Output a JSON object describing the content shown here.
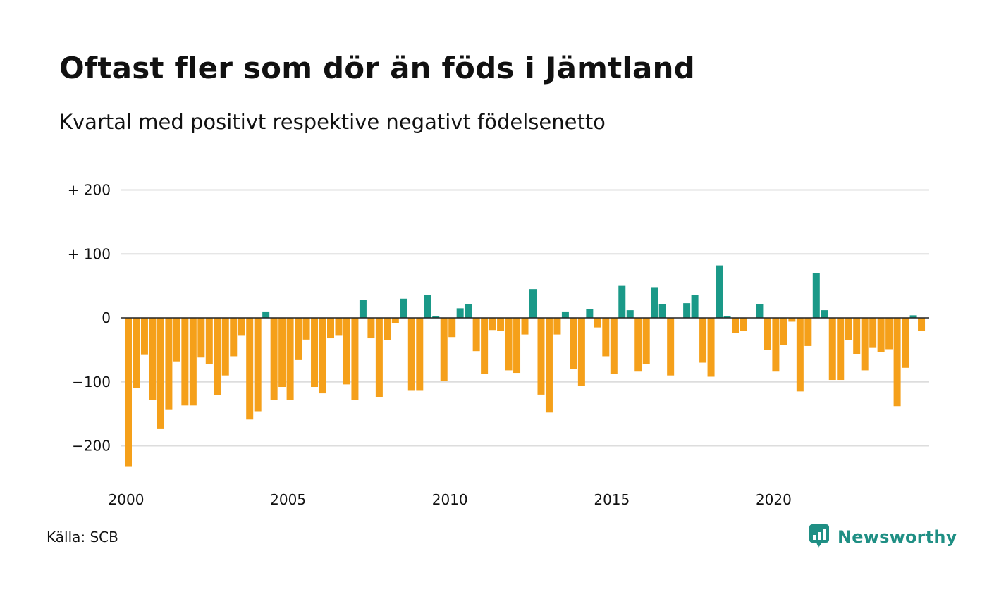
{
  "title": "Oftast fler som dör än föds i Jämtland",
  "subtitle": "Kvartal med positivt respektive negativt födelsenetto",
  "source": "Källa: SCB",
  "brand": {
    "name": "Newsworthy",
    "color": "#1f8f84"
  },
  "colors": {
    "positive": "#1a9988",
    "negative": "#f5a01a",
    "grid": "#dddddd",
    "zero": "#222222"
  },
  "chart_data": {
    "type": "bar",
    "title": "Oftast fler som dör än föds i Jämtland",
    "subtitle": "Kvartal med positivt respektive negativt födelsenetto",
    "xlabel": "",
    "ylabel": "",
    "x_start": 2000,
    "periods_per_year": 4,
    "xticks": [
      2000,
      2005,
      2010,
      2015,
      2020
    ],
    "xtick_labels": [
      "2000",
      "2005",
      "2010",
      "2015",
      "2020"
    ],
    "yticks": [
      200,
      100,
      0,
      -100,
      -200
    ],
    "ytick_labels": [
      "+ 200",
      "+ 100",
      "0",
      "−100",
      "−200"
    ],
    "ylim": [
      -240,
      200
    ],
    "grid": true,
    "values": [
      -232,
      -110,
      -58,
      -128,
      -174,
      -144,
      -68,
      -137,
      -137,
      -62,
      -72,
      -121,
      -90,
      -60,
      -28,
      -159,
      -146,
      10,
      -128,
      -108,
      -128,
      -66,
      -34,
      -108,
      -118,
      -32,
      -28,
      -104,
      -128,
      28,
      -32,
      -124,
      -35,
      -8,
      30,
      -114,
      -114,
      36,
      3,
      -99,
      -30,
      15,
      22,
      -52,
      -88,
      -19,
      -20,
      -82,
      -86,
      -26,
      45,
      -120,
      -148,
      -26,
      10,
      -80,
      -106,
      14,
      -15,
      -60,
      -88,
      50,
      12,
      -84,
      -72,
      48,
      21,
      -90,
      0,
      23,
      36,
      -70,
      -92,
      82,
      3,
      -24,
      -20,
      0,
      21,
      -50,
      -84,
      -42,
      -6,
      -115,
      -44,
      70,
      12,
      -97,
      -97,
      -35,
      -57,
      -82,
      -47,
      -53,
      -49,
      -138,
      -78,
      4,
      -20
    ]
  }
}
